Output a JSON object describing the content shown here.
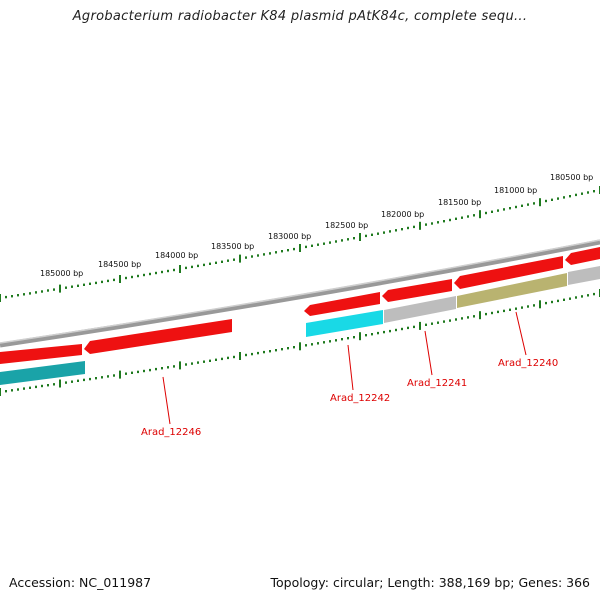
{
  "title": "Agrobacterium radiobacter K84 plasmid pAtK84c, complete sequ...",
  "footer": {
    "accession": "Accession: NC_011987",
    "summary": "Topology: circular; Length: 388,169 bp; Genes: 366"
  },
  "scale_ticks": [
    "185000 bp",
    "184500 bp",
    "184000 bp",
    "183500 bp",
    "183000 bp",
    "182500 bp",
    "182000 bp",
    "181500 bp",
    "181000 bp",
    "180500 bp"
  ],
  "gene_labels": [
    "Arad_12246",
    "Arad_12242",
    "Arad_12241",
    "Arad_12240"
  ],
  "colors": {
    "backbone": "#8a8a8a",
    "ruler": "#1f7a1f",
    "gene_cds": "#ee1111",
    "feature_cyan": "#19d9e6",
    "feature_teal": "#1aa3a8",
    "feature_gray": "#bdbdbd",
    "feature_olive": "#b9b370",
    "label": "#dd0000"
  }
}
